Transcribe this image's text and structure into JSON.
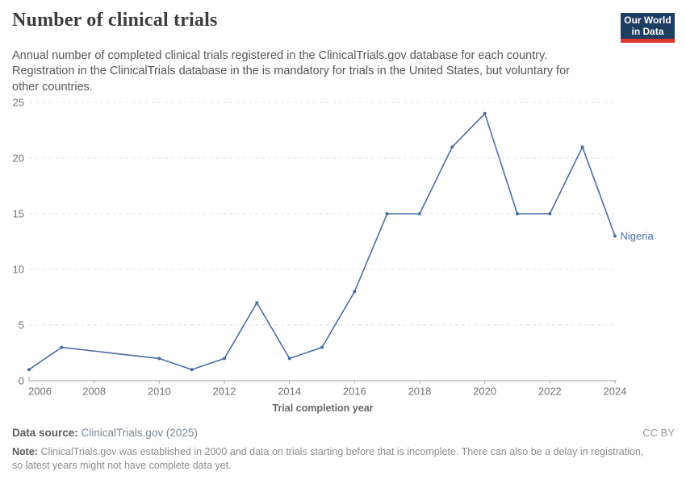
{
  "header": {
    "logo": {
      "line1": "Our World",
      "line2": "in Data",
      "bg_color": "#1d3d63",
      "stripe_color": "#dc352b"
    }
  },
  "chart_data": {
    "type": "line",
    "title": "Number of clinical trials",
    "subtitle_lines": [
      "Annual number of completed clinical trials registered in the ClinicalTrials.gov database for each country.",
      "Registration in the ClinicalTrials database in the is mandatory for trials in the United States, but voluntary for",
      "other countries."
    ],
    "xlabel": "Trial completion year",
    "ylabel": "",
    "xlim": [
      2006,
      2024
    ],
    "ylim": [
      0,
      25
    ],
    "x_ticks": [
      2006,
      2008,
      2010,
      2012,
      2014,
      2016,
      2018,
      2020,
      2022,
      2024
    ],
    "y_ticks": [
      0,
      5,
      10,
      15,
      20,
      25
    ],
    "grid": "horizontal-dashed",
    "legend_position": "end-of-line",
    "line_color": "#4b6ca5",
    "grid_color": "#e3e3e3",
    "axis_color": "#a3a3a3",
    "tick_label_color": "#737373",
    "series": [
      {
        "name": "Nigeria",
        "points": [
          [
            2006,
            1
          ],
          [
            2007,
            3
          ],
          [
            2010,
            2
          ],
          [
            2011,
            1
          ],
          [
            2012,
            2
          ],
          [
            2013,
            7
          ],
          [
            2014,
            2
          ],
          [
            2015,
            3
          ],
          [
            2016,
            8
          ],
          [
            2017,
            15
          ],
          [
            2018,
            15
          ],
          [
            2019,
            21
          ],
          [
            2020,
            24
          ],
          [
            2021,
            15
          ],
          [
            2022,
            15
          ],
          [
            2023,
            21
          ],
          [
            2024,
            13
          ]
        ]
      }
    ]
  },
  "footer": {
    "source_label": "Data source:",
    "source_link": "ClinicalTrials.gov (2025)",
    "license": "CC BY",
    "note_label": "Note:",
    "note_line1": "ClinicalTrials.gov was established in 2000 and data on trials starting before that is incomplete. There can also be a delay in registration,",
    "note_line2": "so latest years might not have complete data yet."
  }
}
